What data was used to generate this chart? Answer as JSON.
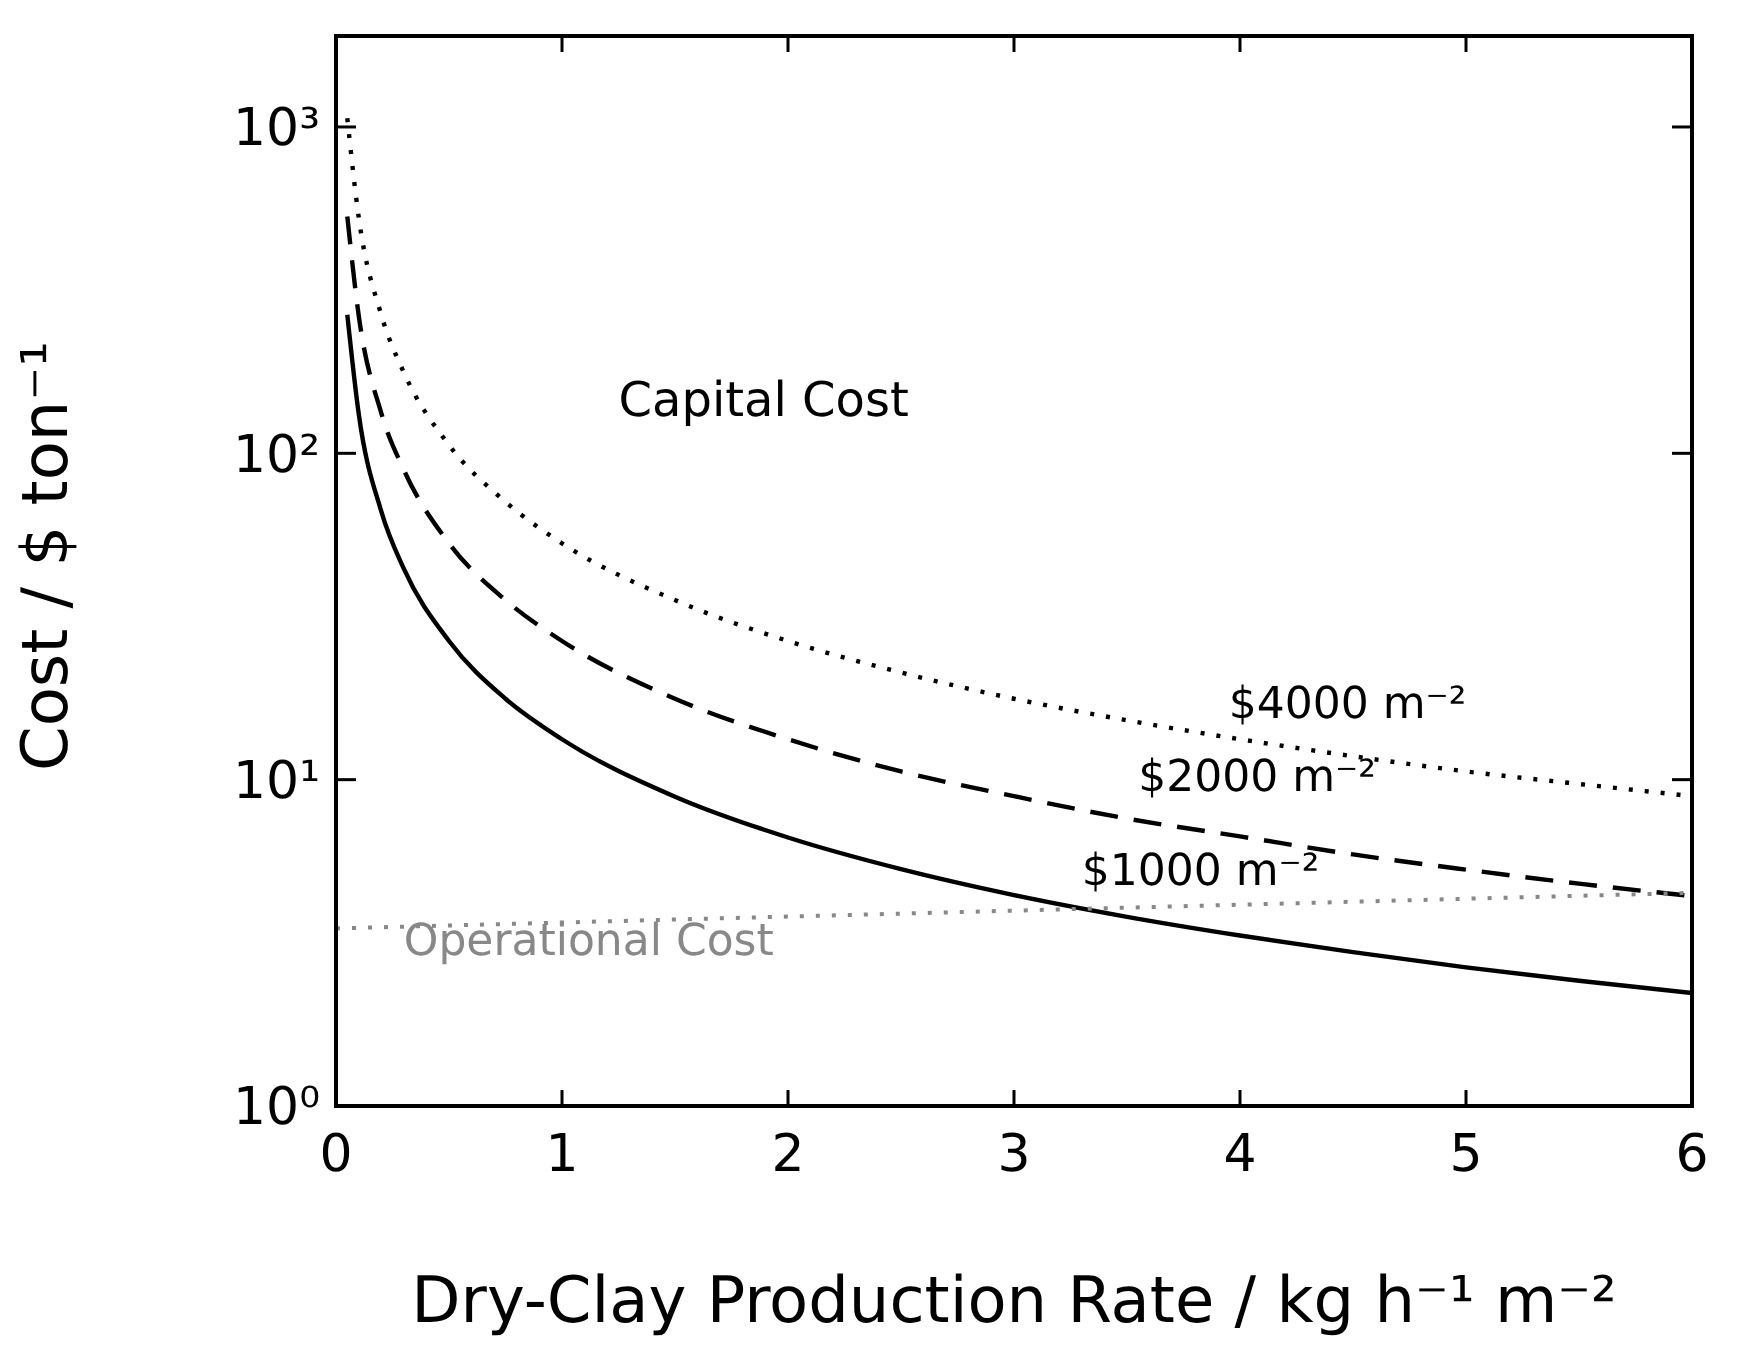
{
  "chart_data": {
    "type": "line",
    "xlabel": "Dry-Clay Production Rate / kg h⁻¹ m⁻²",
    "ylabel": "Cost / $ ton⁻¹",
    "x": [
      0.05,
      0.1,
      0.2,
      0.3,
      0.5,
      0.75,
      1,
      1.5,
      2,
      2.5,
      3,
      3.5,
      4,
      4.5,
      5,
      5.5,
      6
    ],
    "series": [
      {
        "name": "$1000 m⁻²",
        "color": "#000000",
        "line_style": "solid",
        "values": [
          266,
          133,
          66.5,
          44.3,
          26.6,
          17.7,
          13.3,
          8.87,
          6.65,
          5.32,
          4.43,
          3.8,
          3.33,
          2.96,
          2.66,
          2.42,
          2.22
        ]
      },
      {
        "name": "$2000 m⁻²",
        "color": "#000000",
        "line_style": "dashed",
        "values": [
          532,
          266,
          133,
          89,
          53,
          35.5,
          26.6,
          17.7,
          13.3,
          10.6,
          8.9,
          7.6,
          6.7,
          5.9,
          5.3,
          4.8,
          4.4
        ]
      },
      {
        "name": "$4000 m⁻²",
        "color": "#000000",
        "line_style": "dotted",
        "values": [
          1064,
          532,
          266,
          177,
          106,
          71,
          53,
          35.5,
          26.6,
          21.3,
          17.7,
          15.2,
          13.3,
          11.8,
          10.6,
          9.7,
          8.9
        ]
      },
      {
        "name": "Operational Cost",
        "color": "#888888",
        "line_style": "dotted",
        "x": [
          0,
          6
        ],
        "values": [
          3.5,
          4.5
        ]
      }
    ],
    "annotations": [
      "Capital Cost"
    ],
    "log": "y",
    "xlim": [
      0,
      6
    ],
    "xticks": [
      0,
      1,
      2,
      3,
      4,
      5,
      6
    ],
    "ylim": [
      1,
      1900
    ],
    "yticks": [
      {
        "value": 1,
        "label": "10⁰"
      },
      {
        "value": 10,
        "label": "10¹"
      },
      {
        "value": 100,
        "label": "10²"
      },
      {
        "value": 1000,
        "label": "10³"
      }
    ],
    "grid": false,
    "marker": "none"
  }
}
